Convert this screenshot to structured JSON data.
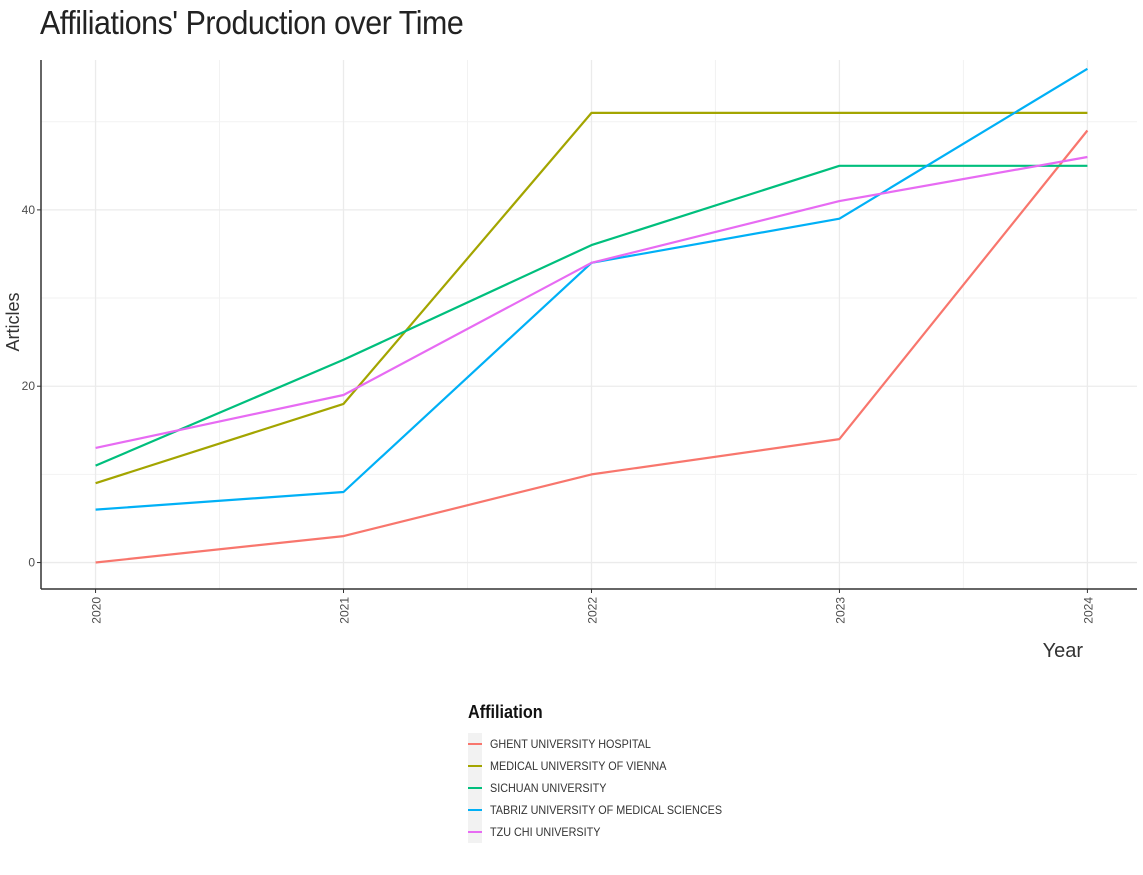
{
  "chart_data": {
    "type": "line",
    "title": "Affiliations' Production over Time",
    "xlabel": "Year",
    "ylabel": "Articles",
    "x": [
      2020,
      2021,
      2022,
      2023,
      2024
    ],
    "xlim": [
      2019.78,
      2024.2
    ],
    "ylim": [
      -3,
      57
    ],
    "yticks": [
      0,
      20,
      40
    ],
    "grid": true,
    "legend_title": "Affiliation",
    "legend_position": "bottom",
    "series": [
      {
        "name": "GHENT UNIVERSITY HOSPITAL",
        "color": "#F8766D",
        "values": [
          0,
          3,
          10,
          14,
          49
        ]
      },
      {
        "name": "MEDICAL UNIVERSITY OF VIENNA",
        "color": "#A3A500",
        "values": [
          9,
          18,
          51,
          51,
          51
        ]
      },
      {
        "name": "SICHUAN UNIVERSITY",
        "color": "#00BF7D",
        "values": [
          11,
          23,
          36,
          45,
          45
        ]
      },
      {
        "name": "TABRIZ UNIVERSITY OF MEDICAL SCIENCES",
        "color": "#00B0F6",
        "values": [
          6,
          8,
          34,
          39,
          56
        ]
      },
      {
        "name": "TZU CHI UNIVERSITY",
        "color": "#E76BF3",
        "values": [
          13,
          19,
          34,
          41,
          46
        ]
      }
    ]
  }
}
